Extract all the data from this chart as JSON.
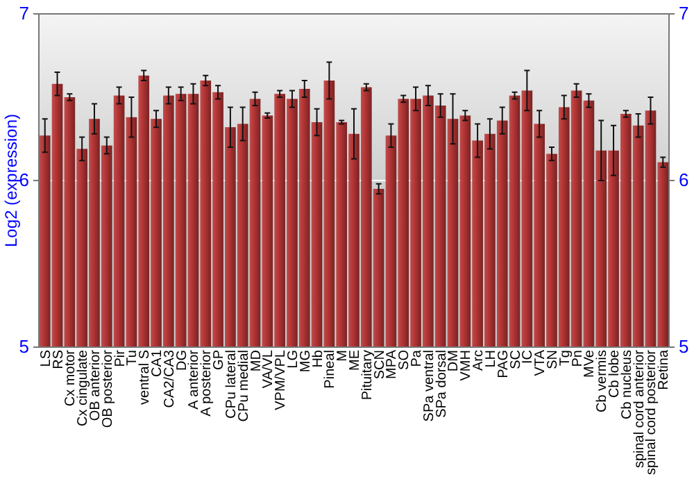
{
  "chart_data": {
    "type": "bar",
    "ylabel": "Log2 (expression)",
    "categories": [
      "LS",
      "RS",
      "Cx motor",
      "Cx cingulate",
      "OB anterior",
      "OB posterior",
      "Pir",
      "Tu",
      "ventral S",
      "CA1",
      "CA2/CA3",
      "DG",
      "A anterior",
      "A posterior",
      "GP",
      "CPu lateral",
      "CPu medial",
      "MD",
      "VA/VL",
      "VPM/VPL",
      "LG",
      "MG",
      "Hb",
      "Pineal",
      "M",
      "ME",
      "Pituitary",
      "SCN",
      "MPA",
      "SO",
      "Pa",
      "SPa ventral",
      "SPa dorsal",
      "DM",
      "VMH",
      "Arc",
      "LH",
      "PAG",
      "SC",
      "IC",
      "VTA",
      "SN",
      "Tg",
      "Pn",
      "MVe",
      "Cb vermis",
      "Cb lobe",
      "Cb nucleus",
      "spinal cord anterior",
      "spinal cord posterior",
      "Retina"
    ],
    "values": [
      6.27,
      6.58,
      6.5,
      6.19,
      6.37,
      6.21,
      6.51,
      6.38,
      6.63,
      6.37,
      6.51,
      6.52,
      6.52,
      6.6,
      6.53,
      6.32,
      6.34,
      6.49,
      6.39,
      6.52,
      6.49,
      6.55,
      6.35,
      6.6,
      6.35,
      6.28,
      6.56,
      5.95,
      6.27,
      6.49,
      6.49,
      6.51,
      6.45,
      6.37,
      6.39,
      6.24,
      6.28,
      6.36,
      6.51,
      6.54,
      6.34,
      6.16,
      6.44,
      6.54,
      6.48,
      6.18,
      6.18,
      6.4,
      6.33,
      6.42,
      6.11
    ],
    "errors": [
      0.1,
      0.07,
      0.02,
      0.07,
      0.09,
      0.05,
      0.05,
      0.12,
      0.03,
      0.05,
      0.05,
      0.04,
      0.06,
      0.03,
      0.04,
      0.12,
      0.1,
      0.04,
      0.015,
      0.02,
      0.05,
      0.05,
      0.08,
      0.11,
      0.01,
      0.15,
      0.02,
      0.03,
      0.07,
      0.02,
      0.07,
      0.06,
      0.07,
      0.15,
      0.03,
      0.1,
      0.09,
      0.08,
      0.02,
      0.12,
      0.08,
      0.04,
      0.07,
      0.04,
      0.04,
      0.18,
      0.15,
      0.02,
      0.07,
      0.08,
      0.03
    ],
    "color": "#b83636",
    "ylim": [
      5,
      7
    ],
    "yticks": [
      5,
      6,
      7
    ],
    "y2lim": [
      5,
      7
    ],
    "y2ticks": [
      5,
      6,
      7
    ],
    "grid": "y"
  }
}
